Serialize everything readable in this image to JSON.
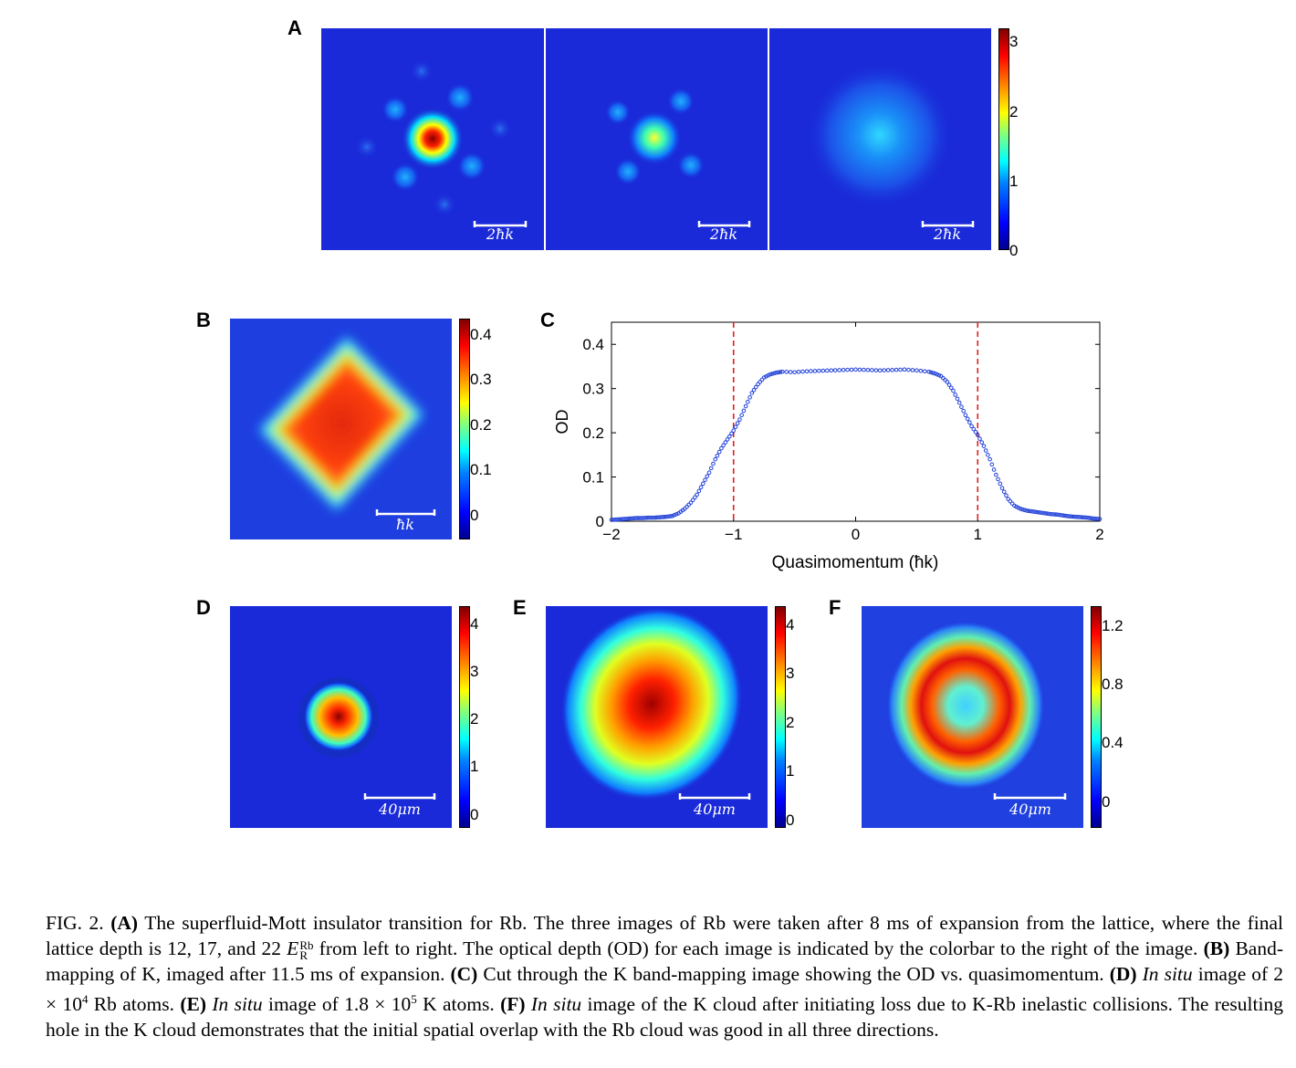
{
  "panel_labels": {
    "a": "A",
    "b": "B",
    "c": "C",
    "d": "D",
    "e": "E",
    "f": "F"
  },
  "panel_a": {
    "images": [
      {
        "scalebar": "2ħk"
      },
      {
        "scalebar": "2ħk"
      },
      {
        "scalebar": "2ħk"
      }
    ],
    "colorbar_ticks": [
      "3",
      "2",
      "1",
      "0"
    ]
  },
  "panel_b": {
    "scalebar": "ħk",
    "colorbar_ticks": [
      "0.4",
      "0.3",
      "0.2",
      "0.1",
      "0"
    ]
  },
  "panel_d": {
    "scalebar": "40μm",
    "colorbar_ticks": [
      "4",
      "3",
      "2",
      "1",
      "0"
    ]
  },
  "panel_e": {
    "scalebar": "40μm",
    "colorbar_ticks": [
      "4",
      "3",
      "2",
      "1",
      "0"
    ]
  },
  "panel_f": {
    "scalebar": "40μm",
    "colorbar_ticks": [
      "1.2",
      "0.8",
      "0.4",
      "0"
    ]
  },
  "colors": {
    "background_blue": "#1a2ad8",
    "marker_blue": "#1f3fd8",
    "dashed_red": "#e02020"
  },
  "chart_data": {
    "type": "scatter",
    "xlabel": "Quasimomentum (ħk)",
    "ylabel": "OD",
    "xlim": [
      -2,
      2
    ],
    "ylim": [
      0,
      0.45
    ],
    "xticks": [
      "−2",
      "−1",
      "0",
      "1",
      "2"
    ],
    "yticks": [
      "0",
      "0.1",
      "0.2",
      "0.3",
      "0.4"
    ],
    "vlines": [
      -1,
      1
    ],
    "series": [
      {
        "x": [
          -2.0,
          -1.95,
          -1.9,
          -1.85,
          -1.8,
          -1.75,
          -1.7,
          -1.65,
          -1.6,
          -1.55,
          -1.5,
          -1.45,
          -1.4,
          -1.35,
          -1.3,
          -1.25,
          -1.2,
          -1.15,
          -1.1,
          -1.05,
          -1.0,
          -0.95,
          -0.9,
          -0.85,
          -0.8,
          -0.75,
          -0.7,
          -0.65,
          -0.6,
          -0.5,
          -0.4,
          -0.3,
          -0.2,
          -0.1,
          0.0,
          0.1,
          0.2,
          0.3,
          0.4,
          0.5,
          0.6,
          0.65,
          0.7,
          0.75,
          0.8,
          0.85,
          0.9,
          0.95,
          1.0,
          1.05,
          1.1,
          1.15,
          1.2,
          1.25,
          1.3,
          1.35,
          1.4,
          1.45,
          1.5,
          1.55,
          1.6,
          1.65,
          1.7,
          1.75,
          1.8,
          1.85,
          1.9,
          1.95,
          2.0
        ],
        "y": [
          0.003,
          0.004,
          0.005,
          0.006,
          0.007,
          0.007,
          0.008,
          0.008,
          0.009,
          0.01,
          0.012,
          0.018,
          0.028,
          0.042,
          0.06,
          0.085,
          0.11,
          0.14,
          0.165,
          0.185,
          0.205,
          0.23,
          0.26,
          0.29,
          0.31,
          0.325,
          0.332,
          0.336,
          0.338,
          0.337,
          0.339,
          0.34,
          0.341,
          0.342,
          0.343,
          0.342,
          0.341,
          0.342,
          0.343,
          0.341,
          0.338,
          0.334,
          0.328,
          0.315,
          0.295,
          0.268,
          0.24,
          0.215,
          0.195,
          0.17,
          0.14,
          0.105,
          0.075,
          0.05,
          0.035,
          0.028,
          0.024,
          0.022,
          0.02,
          0.018,
          0.016,
          0.015,
          0.013,
          0.011,
          0.01,
          0.009,
          0.008,
          0.006,
          0.005
        ]
      }
    ]
  },
  "caption": {
    "fig": "FIG. 2.",
    "a_label": "(A)",
    "a_text": " The superfluid-Mott insulator transition for Rb. The three images of Rb were taken after 8 ms of expansion from the lattice, where the final lattice depth is 12, 17, and 22 ",
    "er_symbol": "E",
    "er_sup": "Rb",
    "er_sub": "R",
    "a_text2": " from left to right. The optical depth (OD) for each image is indicated by the colorbar to the right of the image.",
    "b_label": "(B)",
    "b_text": " Band-mapping of K, imaged after 11.5 ms of expansion.",
    "c_label": "(C)",
    "c_text": " Cut through the K band-mapping image showing the OD vs. quasimomentum.",
    "d_label": "(D)",
    "d_italic": "In situ",
    "d_text": " image of 2 × 10",
    "d_sup": "4",
    "d_text2": " Rb atoms.",
    "e_label": "(E)",
    "e_italic": "In situ",
    "e_text": " image of 1.8 × 10",
    "e_sup": "5",
    "e_text2": " K atoms.",
    "f_label": "(F)",
    "f_italic": "In situ",
    "f_text": " image of the K cloud after initiating loss due to K-Rb inelastic collisions. The resulting hole in the K cloud demonstrates that the initial spatial overlap with the Rb cloud was good in all three directions."
  }
}
